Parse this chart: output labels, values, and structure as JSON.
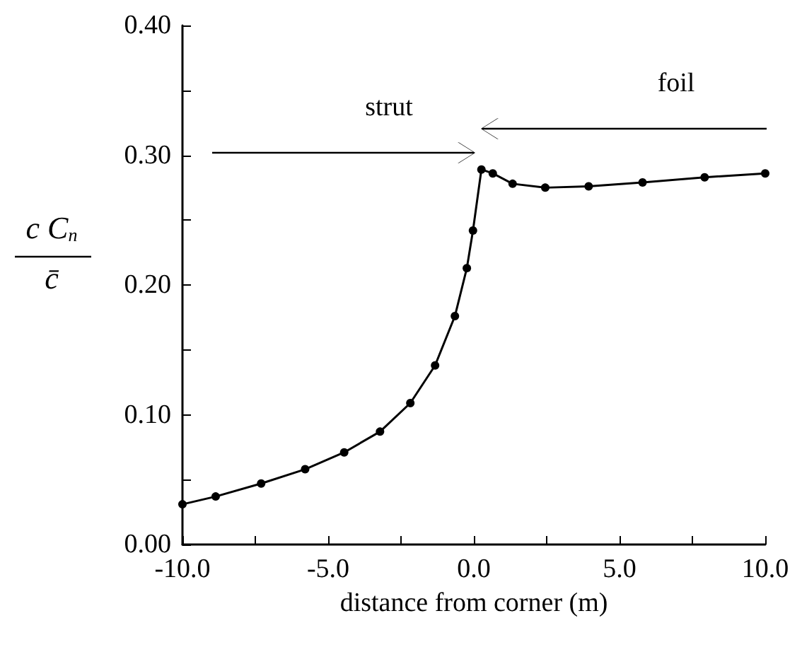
{
  "chart_data": {
    "type": "line",
    "xlabel": "distance from corner (m)",
    "ylabel": "c C$_{n}$\nc̄",
    "x": [
      -10,
      -8.86,
      -7.3,
      -5.79,
      -4.45,
      -3.22,
      -2.18,
      -1.33,
      -0.65,
      -0.24,
      -0.03,
      0.26,
      0.65,
      1.33,
      2.45,
      3.94,
      5.79,
      7.92,
      10
    ],
    "series": [
      {
        "color": "#000000",
        "values": [
          0.031,
          0.037,
          0.047,
          0.058,
          0.071,
          0.087,
          0.109,
          0.138,
          0.176,
          0.213,
          0.242,
          0.289,
          0.286,
          0.278,
          0.275,
          0.276,
          0.279,
          0.283,
          0.286
        ]
      }
    ],
    "xlim": [
      -10,
      10
    ],
    "xticks": [
      {
        "value": -10,
        "label": "-10.0"
      },
      {
        "value": -7.5,
        "label": null
      },
      {
        "value": -5,
        "label": "-5.0"
      },
      {
        "value": -2.5,
        "label": null
      },
      {
        "value": 0,
        "label": "0.0"
      },
      {
        "value": 2.5,
        "label": null
      },
      {
        "value": 5,
        "label": "5.0"
      },
      {
        "value": 7.5,
        "label": null
      },
      {
        "value": 10,
        "label": "10.0"
      }
    ],
    "ylim": [
      0,
      0.4
    ],
    "yticks": [
      {
        "value": 0,
        "label": "0.00"
      },
      {
        "value": 0.05,
        "label": null
      },
      {
        "value": 0.1,
        "label": "0.10"
      },
      {
        "value": 0.15,
        "label": null
      },
      {
        "value": 0.2,
        "label": "0.20"
      },
      {
        "value": 0.25,
        "label": null
      },
      {
        "value": 0.3,
        "label": "0.30"
      },
      {
        "value": 0.35,
        "label": null
      },
      {
        "value": 0.4,
        "label": "0.40"
      }
    ],
    "annotations": [
      "strut",
      "foil"
    ],
    "grid": false,
    "marker": "circle",
    "line_style": "solid"
  }
}
